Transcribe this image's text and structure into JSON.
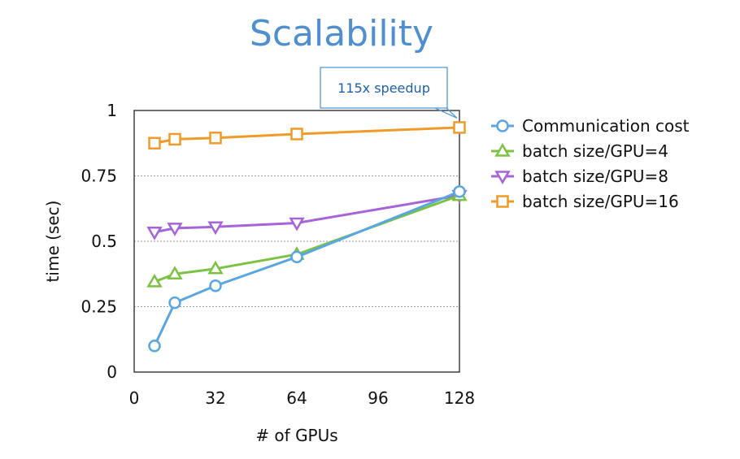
{
  "chart_data": {
    "type": "line",
    "title": "Scalability",
    "xlabel": "# of GPUs",
    "ylabel": "time (sec)",
    "xlim": [
      0,
      128
    ],
    "ylim": [
      0,
      1
    ],
    "xticks": [
      0,
      32,
      64,
      96,
      128
    ],
    "xtick_labels": [
      "0",
      "32",
      "64",
      "96",
      "128"
    ],
    "yticks": [
      0,
      0.25,
      0.5,
      0.75,
      1
    ],
    "ytick_labels": [
      "0",
      "0.25",
      "0.5",
      "0.75",
      "1"
    ],
    "grid": "horizontal-dotted",
    "legend_position": "right",
    "annotation": {
      "text": "115x speedup",
      "x": 128,
      "y": 0.94
    },
    "series": [
      {
        "name": "Communication cost",
        "color": "#5aa6e0",
        "marker": "circle",
        "x": [
          8,
          16,
          32,
          64,
          128
        ],
        "y": [
          0.1,
          0.265,
          0.33,
          0.44,
          0.69
        ]
      },
      {
        "name": "batch size/GPU=4",
        "color": "#7cc242",
        "marker": "triangle-up",
        "x": [
          8,
          16,
          32,
          64,
          128
        ],
        "y": [
          0.345,
          0.375,
          0.395,
          0.45,
          0.675
        ]
      },
      {
        "name": "batch size/GPU=8",
        "color": "#a564d8",
        "marker": "triangle-down",
        "x": [
          8,
          16,
          32,
          64,
          128
        ],
        "y": [
          0.535,
          0.55,
          0.555,
          0.57,
          0.675
        ]
      },
      {
        "name": "batch size/GPU=16",
        "color": "#f09a2a",
        "marker": "square",
        "x": [
          8,
          16,
          32,
          64,
          128
        ],
        "y": [
          0.875,
          0.89,
          0.895,
          0.91,
          0.935
        ]
      }
    ]
  }
}
